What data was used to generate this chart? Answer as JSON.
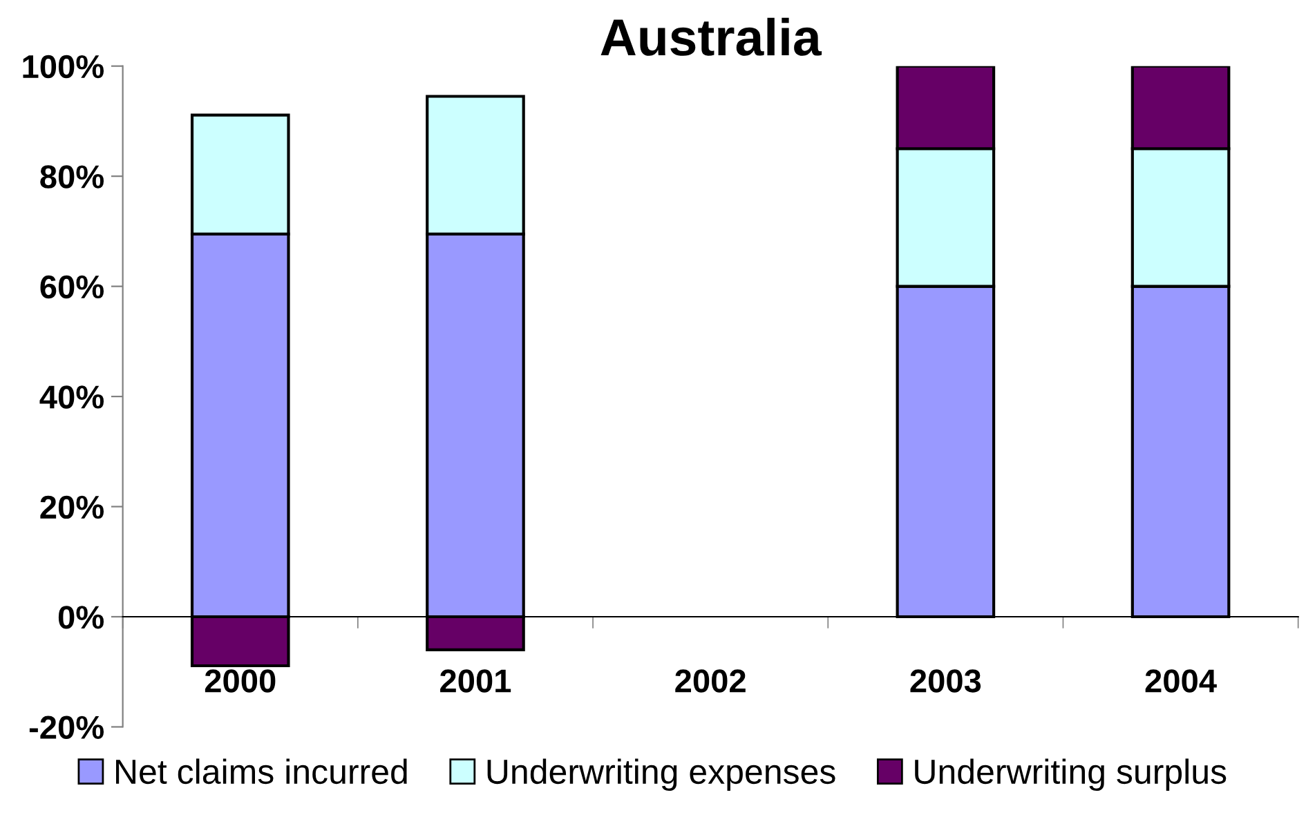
{
  "chart_data": {
    "type": "bar",
    "title": "Australia",
    "stacked": true,
    "categories": [
      "2000",
      "2001",
      "2002",
      "2003",
      "2004"
    ],
    "series": [
      {
        "name": "Net claims incurred",
        "color": "#9999ff",
        "values": [
          69.5,
          69.5,
          null,
          60,
          60
        ]
      },
      {
        "name": "Underwriting expenses",
        "color": "#ccffff",
        "values": [
          21.6,
          25,
          null,
          25,
          25
        ]
      },
      {
        "name": "Underwriting surplus",
        "color": "#660066",
        "values": [
          -8.9,
          -6,
          null,
          15,
          15
        ]
      }
    ],
    "ylim": [
      -20,
      100
    ],
    "yticks": [
      {
        "value": -20,
        "label": "-20%"
      },
      {
        "value": 0,
        "label": "0%"
      },
      {
        "value": 20,
        "label": "20%"
      },
      {
        "value": 40,
        "label": "40%"
      },
      {
        "value": 60,
        "label": "60%"
      },
      {
        "value": 80,
        "label": "80%"
      },
      {
        "value": 100,
        "label": "100%"
      }
    ],
    "legend": "bottom"
  }
}
